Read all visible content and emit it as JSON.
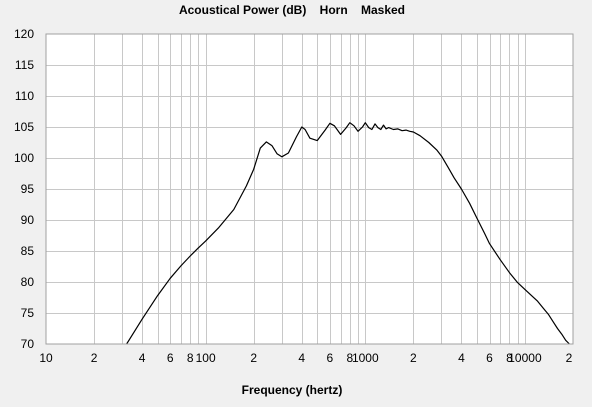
{
  "chart_data": {
    "type": "line",
    "title": "Acoustical Power (dB)    Horn    Masked",
    "xlabel": "Frequency (hertz)",
    "ylabel": "",
    "xscale": "log",
    "xlim": [
      10,
      20000
    ],
    "ylim": [
      70,
      120
    ],
    "grid": true,
    "legend": "none",
    "colors": {
      "background": "#f0f0f0",
      "plot": "#ffffff",
      "grid": "#c8c8c8",
      "line": "#000000"
    },
    "x_tick_labels": [
      {
        "value": 10,
        "label": "10"
      },
      {
        "value": 20,
        "label": "2"
      },
      {
        "value": 40,
        "label": "4"
      },
      {
        "value": 60,
        "label": "6"
      },
      {
        "value": 80,
        "label": "8"
      },
      {
        "value": 100,
        "label": "100"
      },
      {
        "value": 200,
        "label": "2"
      },
      {
        "value": 400,
        "label": "4"
      },
      {
        "value": 600,
        "label": "6"
      },
      {
        "value": 800,
        "label": "8"
      },
      {
        "value": 1000,
        "label": "1000"
      },
      {
        "value": 2000,
        "label": "2"
      },
      {
        "value": 4000,
        "label": "4"
      },
      {
        "value": 6000,
        "label": "6"
      },
      {
        "value": 8000,
        "label": "8"
      },
      {
        "value": 10000,
        "label": "10000"
      },
      {
        "value": 20000,
        "label": "2"
      }
    ],
    "y_ticks": [
      70,
      75,
      80,
      85,
      90,
      95,
      100,
      105,
      110,
      115,
      120
    ],
    "series": [
      {
        "x": [
          32,
          40,
          50,
          60,
          70,
          80,
          90,
          100,
          120,
          150,
          180,
          200,
          220,
          240,
          260,
          280,
          300,
          330,
          370,
          400,
          420,
          450,
          500,
          560,
          600,
          640,
          700,
          760,
          800,
          850,
          900,
          960,
          1000,
          1050,
          1100,
          1150,
          1200,
          1250,
          1300,
          1350,
          1400,
          1500,
          1600,
          1700,
          1800,
          1900,
          2000,
          2200,
          2500,
          2800,
          3000,
          3300,
          3600,
          4000,
          4500,
          5000,
          5600,
          6000,
          7000,
          8000,
          9000,
          10000,
          11000,
          12000,
          13000,
          14000,
          15000,
          16000,
          17000,
          18000,
          19000
        ],
        "y": [
          70,
          74,
          77.8,
          80.6,
          82.6,
          84.2,
          85.5,
          86.6,
          88.7,
          91.7,
          95.5,
          98.2,
          101.6,
          102.6,
          102,
          100.7,
          100.2,
          100.8,
          103.4,
          105,
          104.6,
          103.2,
          102.8,
          104.5,
          105.6,
          105.2,
          103.8,
          104.9,
          105.7,
          105.2,
          104.3,
          105,
          105.7,
          104.9,
          104.6,
          105.5,
          104.9,
          104.6,
          105.3,
          104.7,
          104.9,
          104.6,
          104.7,
          104.4,
          104.5,
          104.3,
          104.2,
          103.6,
          102.5,
          101.3,
          100.3,
          98.5,
          96.8,
          95,
          92.7,
          90.3,
          87.8,
          86.2,
          83.6,
          81.5,
          79.9,
          78.8,
          77.8,
          76.9,
          75.8,
          74.8,
          73.6,
          72.5,
          71.6,
          70.6,
          70
        ]
      }
    ]
  }
}
